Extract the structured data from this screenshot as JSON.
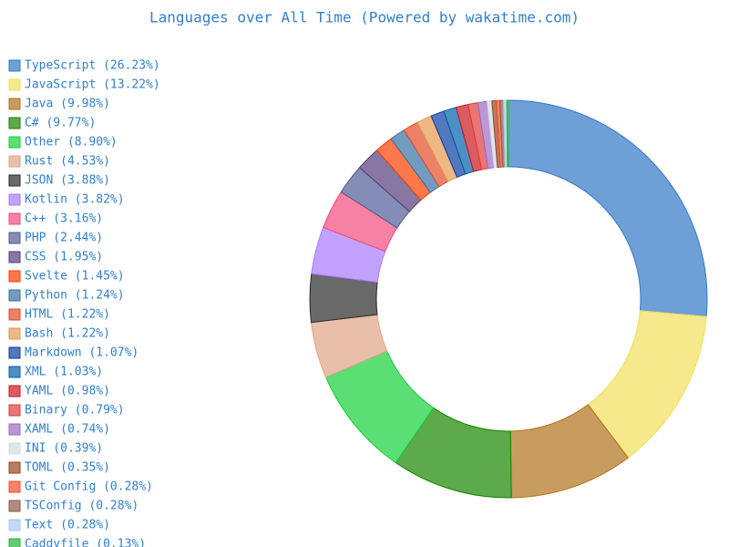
{
  "chart_data": {
    "type": "donut",
    "title": "Languages over All Time (Powered by wakatime.com)",
    "categories": [
      "TypeScript (26.23%)",
      "JavaScript (13.22%)",
      "Java (9.98%)",
      "C# (9.77%)",
      "Other (8.90%)",
      "Rust (4.53%)",
      "JSON (3.88%)",
      "Kotlin (3.82%)",
      "C++ (3.16%)",
      "PHP (2.44%)",
      "CSS (1.95%)",
      "Svelte (1.45%)",
      "Python (1.24%)",
      "HTML (1.22%)",
      "Bash (1.22%)",
      "Markdown (1.07%)",
      "XML (1.03%)",
      "YAML (0.98%)",
      "Binary (0.79%)",
      "XAML (0.74%)",
      "INI (0.39%)",
      "TOML (0.35%)",
      "Git Config (0.28%)",
      "TSConfig (0.28%)",
      "Text (0.28%)",
      "Caddyfile (0.13%)"
    ],
    "values": [
      26.23,
      13.22,
      9.98,
      9.77,
      8.9,
      4.53,
      3.88,
      3.82,
      3.16,
      2.44,
      1.95,
      1.45,
      1.24,
      1.22,
      1.22,
      1.07,
      1.03,
      0.98,
      0.79,
      0.74,
      0.39,
      0.35,
      0.28,
      0.28,
      0.28,
      0.13
    ],
    "colors": [
      "#3178c6",
      "#f1e05a",
      "#b07219",
      "#178600",
      "#15d038",
      "#dea584",
      "#292929",
      "#a97bff",
      "#f34b7d",
      "#4f5d95",
      "#563d7c",
      "#ff3e00",
      "#3572a5",
      "#e34c26",
      "#e59a50",
      "#083fa1",
      "#0060ac",
      "#cb171e",
      "#e03a3a",
      "#9c6bc5",
      "#d1dbe0",
      "#9c4221",
      "#f44d27",
      "#8c5a4a",
      "#aac8f0",
      "#22b638"
    ]
  }
}
